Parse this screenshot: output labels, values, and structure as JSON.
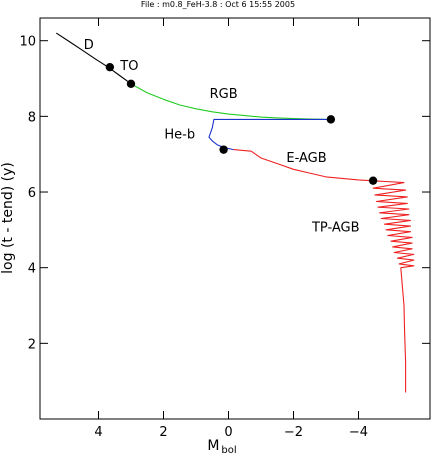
{
  "header": {
    "text": "File : m0.8_FeH-3.8 :  Oct  6 15:55 2005"
  },
  "chart_data": {
    "type": "line",
    "title": "",
    "xlabel": "M",
    "xlabel_sub": "bol",
    "ylabel": "log (t - tend) (y)",
    "xlim": [
      5.8,
      -6.2
    ],
    "ylim": [
      0,
      10.6
    ],
    "x_ticks": [
      4,
      2,
      0,
      -2,
      -4
    ],
    "x_tick_labels": [
      "4",
      "2",
      "0",
      "−2",
      "−4"
    ],
    "y_ticks": [
      2,
      4,
      6,
      8,
      10
    ],
    "y_tick_labels": [
      "2",
      "4",
      "6",
      "8",
      "10"
    ],
    "grid": false,
    "legend": "none",
    "series": [
      {
        "color": "#000000",
        "x": [
          5.3,
          4.9,
          4.5,
          4.1,
          3.7,
          3.35,
          3.0
        ],
        "y": [
          10.2,
          9.98,
          9.75,
          9.52,
          9.3,
          9.08,
          8.86
        ]
      },
      {
        "color": "#22cc22",
        "x": [
          3.0,
          2.5,
          2.0,
          1.5,
          1.0,
          0.5,
          0.0,
          -0.5,
          -1.0,
          -1.5,
          -2.0,
          -2.5,
          -3.1
        ],
        "y": [
          8.86,
          8.62,
          8.45,
          8.3,
          8.2,
          8.12,
          8.06,
          8.02,
          7.98,
          7.96,
          7.94,
          7.93,
          7.92
        ]
      },
      {
        "color": "#1a33cc",
        "x": [
          -3.1,
          -2.0,
          -1.0,
          0.0,
          0.45,
          0.5,
          0.6,
          0.5,
          0.35,
          0.15,
          0.0,
          -0.15
        ],
        "y": [
          7.92,
          7.92,
          7.92,
          7.92,
          7.92,
          7.7,
          7.45,
          7.35,
          7.25,
          7.18,
          7.15,
          7.12
        ]
      },
      {
        "color": "#ee2222",
        "x": [
          -0.15,
          -0.7,
          -1.0,
          -1.5,
          -2.0,
          -2.5,
          -3.0,
          -3.5,
          -4.0,
          -4.4
        ],
        "y": [
          7.12,
          7.08,
          6.9,
          6.75,
          6.6,
          6.5,
          6.4,
          6.36,
          6.32,
          6.3
        ]
      },
      {
        "color": "#ee2222",
        "x": [
          -4.4,
          -5.4,
          -4.45,
          -5.45,
          -4.5,
          -5.5,
          -4.55,
          -5.5,
          -4.6,
          -5.55,
          -4.65,
          -5.55,
          -4.7,
          -5.6,
          -4.8,
          -5.6,
          -4.85,
          -5.6,
          -4.9,
          -5.65,
          -5.0,
          -5.65,
          -5.05,
          -5.65,
          -5.1,
          -5.7,
          -5.2,
          -5.7,
          -5.25,
          -5.7,
          -5.3
        ],
        "y": [
          6.3,
          6.25,
          6.1,
          6.05,
          5.92,
          5.87,
          5.75,
          5.7,
          5.6,
          5.55,
          5.45,
          5.4,
          5.3,
          5.25,
          5.15,
          5.1,
          5.0,
          4.95,
          4.85,
          4.8,
          4.7,
          4.65,
          4.55,
          4.5,
          4.4,
          4.35,
          4.25,
          4.2,
          4.1,
          4.05,
          4.0
        ]
      },
      {
        "color": "#ee2222",
        "x": [
          -5.3,
          -5.35,
          -5.4,
          -5.42,
          -5.45,
          -5.45
        ],
        "y": [
          4.0,
          3.5,
          3.0,
          2.3,
          1.5,
          0.7
        ]
      }
    ],
    "markers": {
      "color": "#000000",
      "x": [
        3.65,
        3.0,
        -3.15,
        0.15,
        -4.45
      ],
      "y": [
        9.3,
        8.86,
        7.92,
        7.12,
        6.3
      ]
    },
    "annotations": [
      {
        "text": "D",
        "x": 4.3,
        "y": 9.78
      },
      {
        "text": "TO",
        "x": 3.05,
        "y": 9.22
      },
      {
        "text": "RGB",
        "x": 0.15,
        "y": 8.48
      },
      {
        "text": "He-b",
        "x": 1.5,
        "y": 7.42
      },
      {
        "text": "E-AGB",
        "x": -2.4,
        "y": 6.8
      },
      {
        "text": "TP-AGB",
        "x": -3.3,
        "y": 4.95
      }
    ]
  }
}
